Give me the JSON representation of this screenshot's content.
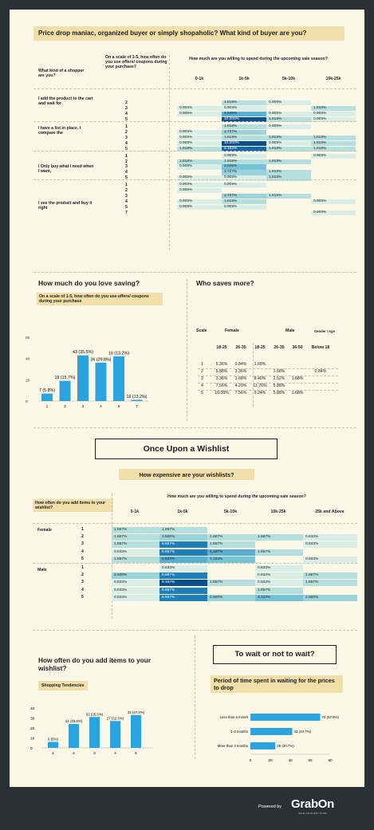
{
  "colors": {
    "page_bg": "#fcf8e8",
    "banner": "#f1dfa9",
    "bar": "#2aa3df",
    "dark": "#1163a8",
    "footer": "#2b2f36"
  },
  "header": {
    "title": "Price drop maniac, organized buyer or simply shopaholic? What kind of buyer are you?"
  },
  "table1": {
    "col1_header": "What kind of a shopper are you?",
    "col2_header": "On a scale of 1-5, how often do you use offers/ coupons during your purchase?",
    "span_header": "How much are you willing to spend during the upcoming sale season?",
    "columns": [
      "0-1k",
      "1k-5k",
      "5k-10k",
      "10k-25k"
    ],
    "groups": [
      {
        "label": "I add the product to the cart and wait for",
        "rows": [
          {
            "scale": "2",
            "cells": [
              "",
              "1.818%",
              "0.909%",
              ""
            ]
          },
          {
            "scale": "3",
            "cells": [
              "0.909%",
              "0.909%",
              "",
              "1.818%"
            ]
          },
          {
            "scale": "4",
            "cells": [
              "0.909%",
              "4.545%",
              "0.909%",
              "0.909%"
            ]
          },
          {
            "scale": "5",
            "cells": [
              "",
              "10.000%",
              "1.818%",
              "0.909%"
            ]
          }
        ]
      },
      {
        "label": "I have a list in place, I compare the",
        "rows": [
          {
            "scale": "1",
            "cells": [
              "",
              "1.818%",
              "0.909%",
              ""
            ]
          },
          {
            "scale": "2",
            "cells": [
              "0.909%",
              "2.727%",
              "",
              ""
            ]
          },
          {
            "scale": "3",
            "cells": [
              "0.909%",
              "1.818%",
              "1.818%",
              "1.818%"
            ]
          },
          {
            "scale": "4",
            "cells": [
              "0.909%",
              "10.000%",
              "0.909%",
              "1.818%"
            ]
          },
          {
            "scale": "5",
            "cells": [
              "1.818%",
              "8.182%",
              "1.818%",
              "1.818%"
            ]
          }
        ]
      },
      {
        "label": "I Only buy what I need when I want,",
        "rows": [
          {
            "scale": "1",
            "cells": [
              "",
              "0.909%",
              "",
              "0.909%"
            ]
          },
          {
            "scale": "2",
            "cells": [
              "1.818%",
              "1.818%",
              "1.818%",
              ""
            ]
          },
          {
            "scale": "3",
            "cells": [
              "0.909%",
              "3.636%",
              "",
              ""
            ]
          },
          {
            "scale": "4",
            "cells": [
              "",
              "2.727%",
              "1.818%",
              ""
            ]
          },
          {
            "scale": "5",
            "cells": [
              "0.909%",
              "0.909%",
              "1.818%",
              ""
            ]
          }
        ]
      },
      {
        "label": "I see the product and buy it right",
        "rows": [
          {
            "scale": "1",
            "cells": [
              "0.909%",
              "0.909%",
              "",
              ""
            ]
          },
          {
            "scale": "2",
            "cells": [
              "0.909%",
              "",
              "",
              ""
            ]
          },
          {
            "scale": "3",
            "cells": [
              "",
              "2.727%",
              "1.818%",
              ""
            ]
          },
          {
            "scale": "4",
            "cells": [
              "0.909%",
              "1.818%",
              "",
              "0.909%"
            ]
          },
          {
            "scale": "5",
            "cells": [
              "0.909%",
              "0.909%",
              "",
              ""
            ]
          },
          {
            "scale": "7",
            "cells": [
              "",
              "",
              "",
              "0.909%"
            ]
          }
        ]
      }
    ]
  },
  "love_saving": {
    "title": "How much do you love saving?",
    "subtitle": "On a scale of 1-5, how often do you use offers/ coupons during your purchase",
    "chart_data": {
      "type": "bar",
      "categories": [
        "1",
        "2",
        "3",
        "4",
        "5",
        "7"
      ],
      "values": [
        7,
        19,
        43,
        36,
        16,
        16
      ],
      "data_labels": [
        "7 (5.8%)",
        "19 (15.7%)",
        "43 (35.5%)",
        "36 (29.8%)",
        "16 (13.2%)",
        "16 (13.2%)"
      ],
      "yticks": [
        "0",
        "20",
        "40",
        "60"
      ],
      "ylim": [
        0,
        60
      ]
    }
  },
  "who_saves": {
    "title": "Who saves more?",
    "head1": {
      "scale": "Scale",
      "female": "Female",
      "male": "Male",
      "gender": "Gender / Age"
    },
    "ages": [
      "18-25",
      "26-35",
      "18-25",
      "26-35",
      "36-50",
      "Below 18"
    ],
    "rows": [
      [
        "1",
        "5.36%",
        "0.84%",
        "1.68%",
        "",
        "",
        ""
      ],
      [
        "2",
        "5.88%",
        "3.36%",
        "",
        "1.68%",
        "",
        "0.84%"
      ],
      [
        "3",
        "3.36%",
        "1.68%",
        "8.40%",
        "2.52%",
        "1.68%",
        ""
      ],
      [
        "4",
        "7.56%",
        "4.20%",
        "11.76%",
        "5.88%",
        "",
        ""
      ],
      [
        "5",
        "10.08%",
        "7.56%",
        "9.24%",
        "5.88%",
        "1.68%",
        ""
      ]
    ]
  },
  "wishlist_title": "Once Upon a Wishlist",
  "table2": {
    "banner": "How expensive are your wishlists?",
    "col1_header": "How often do you add items to your wishlist?",
    "span_header": "How much are you willing to spend during the upcoming sale season?",
    "columns": [
      "0-1k",
      "1k-5k",
      "5k-10k",
      "10k-25k",
      "25k and Above"
    ],
    "groups": [
      {
        "label": "Female",
        "rows": [
          {
            "scale": "1",
            "cells": [
              "1.667%",
              "1.667%",
              "",
              "",
              ""
            ]
          },
          {
            "scale": "2",
            "cells": [
              "1.667%",
              "2.500%",
              "1.667%",
              "1.667%",
              "0.833%"
            ]
          },
          {
            "scale": "3",
            "cells": [
              "1.667%",
              "6.667%",
              "1.667%",
              "",
              "0.833%"
            ]
          },
          {
            "scale": "4",
            "cells": [
              "0.833%",
              "6.667%",
              "4.167%",
              "1.667%",
              ""
            ]
          },
          {
            "scale": "5",
            "cells": [
              "1.667%",
              "5.833%",
              "3.333%",
              "",
              "0.833%"
            ]
          }
        ]
      },
      {
        "label": "Male",
        "rows": [
          {
            "scale": "1",
            "cells": [
              "",
              "0.833%",
              "",
              "0.833%",
              ""
            ]
          },
          {
            "scale": "2",
            "cells": [
              "2.500%",
              "6.667%",
              "",
              "0.833%",
              "1.667%"
            ]
          },
          {
            "scale": "3",
            "cells": [
              "0.833%",
              "9.167%",
              "1.667%",
              "0.833%",
              "1.667%"
            ]
          },
          {
            "scale": "4",
            "cells": [
              "0.833%",
              "6.667%",
              "",
              "1.667%",
              ""
            ]
          },
          {
            "scale": "5",
            "cells": [
              "0.833%",
              "6.667%",
              "2.500%",
              "3.333%",
              "2.500%"
            ]
          }
        ]
      }
    ]
  },
  "add_items": {
    "title": "How often do you add items to your wishlist?",
    "subtitle": "Shopping Tendencies",
    "chart_data": {
      "type": "bar",
      "categories": [
        "1",
        "2",
        "3",
        "4",
        "5"
      ],
      "values": [
        6,
        24,
        31,
        27,
        33
      ],
      "data_labels": [
        "6 (5%)",
        "24 (19.8%)",
        "31 (25.6%)",
        "27 (22.3%)",
        "33 (27.3%)"
      ],
      "yticks": [
        "0",
        "10",
        "20",
        "30",
        "40"
      ],
      "ylim": [
        0,
        40
      ]
    }
  },
  "wait": {
    "title": "To wait or not to wait?",
    "subtitle": "Period of time spent in waiting for the prices to drop",
    "chart_data": {
      "type": "bar",
      "categories": [
        "Less than a month",
        "1-3 months",
        "More than 3 months"
      ],
      "values": [
        70,
        42,
        25
      ],
      "data_labels": [
        "70 (57.9%)",
        "42 (34.7%)",
        "25 (20.7%)"
      ],
      "xticks": [
        "0",
        "20",
        "40",
        "60",
        "80"
      ],
      "xlim": [
        0,
        80
      ]
    }
  },
  "footer": {
    "powered": "Powered by",
    "brand": "GrabOn",
    "tagline": "SAVE ON EVERYTHING"
  }
}
